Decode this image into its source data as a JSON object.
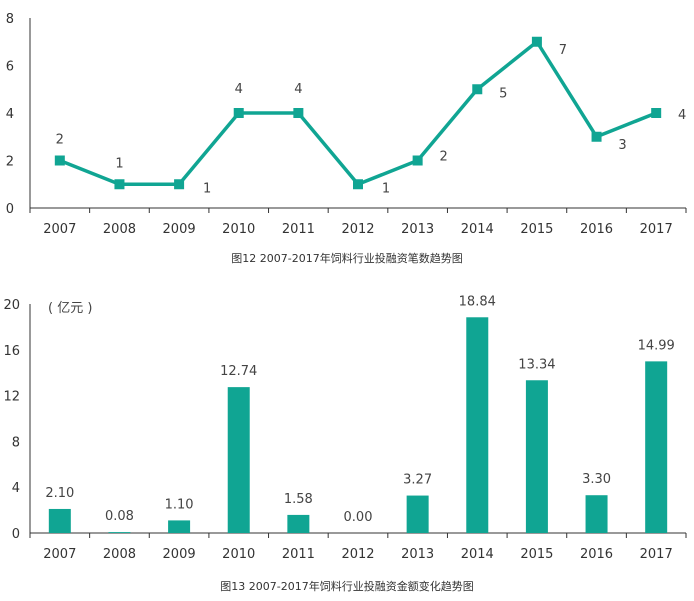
{
  "chart_data": [
    {
      "type": "line",
      "title": "图12 2007-2017年饲料行业投融资笔数趋势图",
      "categories": [
        "2007",
        "2008",
        "2009",
        "2010",
        "2011",
        "2012",
        "2013",
        "2014",
        "2015",
        "2016",
        "2017"
      ],
      "values": [
        2,
        1,
        1,
        4,
        4,
        1,
        2,
        5,
        7,
        3,
        4
      ],
      "data_labels": [
        "2",
        "1",
        "1",
        "4",
        "4",
        "1",
        "2",
        "5",
        "7",
        "3",
        "4"
      ],
      "yticks": [
        "0",
        "2",
        "4",
        "6",
        "8"
      ],
      "ylim": [
        0,
        8
      ],
      "color": "#10a593"
    },
    {
      "type": "bar",
      "title": "图13 2007-2017年饲料行业投融资金额变化趋势图",
      "unit": "( 亿元 )",
      "categories": [
        "2007",
        "2008",
        "2009",
        "2010",
        "2011",
        "2012",
        "2013",
        "2014",
        "2015",
        "2016",
        "2017"
      ],
      "values": [
        2.1,
        0.08,
        1.1,
        12.74,
        1.58,
        0.0,
        3.27,
        18.84,
        13.34,
        3.3,
        14.99
      ],
      "data_labels": [
        "2.10",
        "0.08",
        "1.10",
        "12.74",
        "1.58",
        "0.00",
        "3.27",
        "18.84",
        "13.34",
        "3.30",
        "14.99"
      ],
      "yticks": [
        "0",
        "4",
        "8",
        "12",
        "16",
        "20"
      ],
      "ylim": [
        0,
        20
      ],
      "color": "#10a593"
    }
  ]
}
